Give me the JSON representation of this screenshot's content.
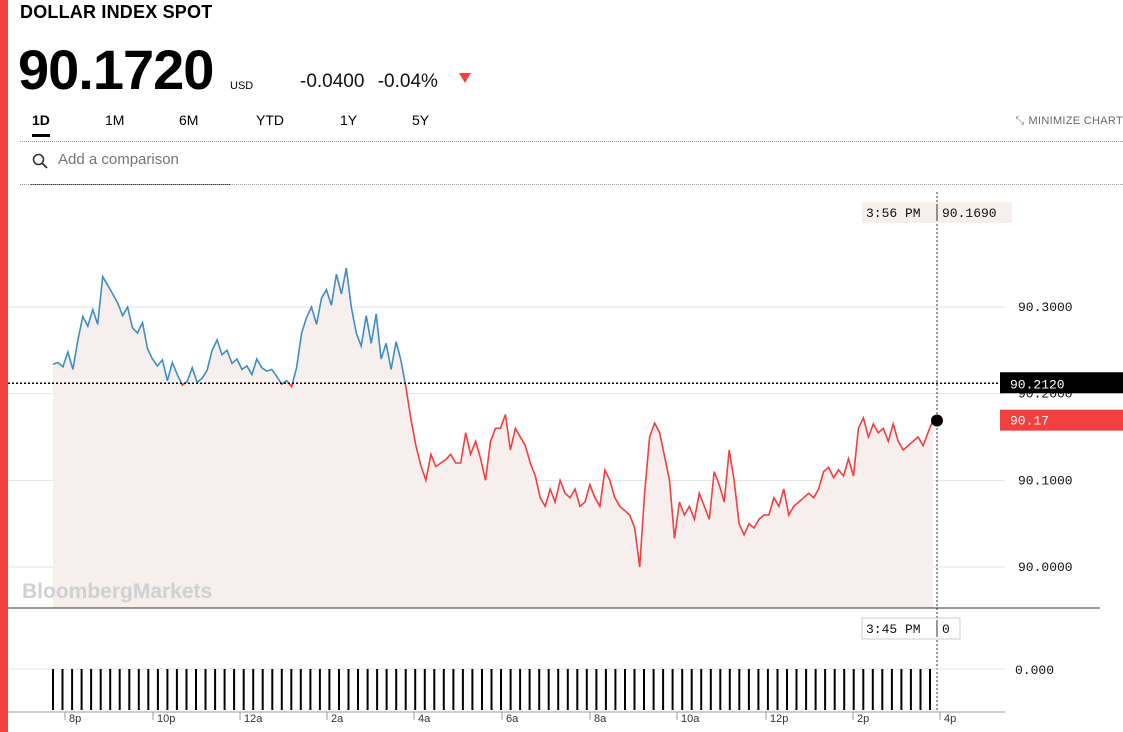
{
  "header": {
    "title": "DOLLAR INDEX SPOT",
    "price": "90.1720",
    "currency": "USD",
    "change_abs": "-0.0400",
    "change_pct": "-0.04%"
  },
  "ranges": [
    "1D",
    "1M",
    "6M",
    "YTD",
    "1Y",
    "5Y"
  ],
  "active_range": "1D",
  "minimize_label": "MINIMIZE CHART",
  "search": {
    "placeholder": "Add a comparison"
  },
  "watermark": "BloombergMarkets",
  "colors": {
    "up": "#3d8fc0",
    "down": "#f23f3f",
    "fill": "#f7eeee",
    "accent": "#f23f3f"
  },
  "chart_data": {
    "type": "line",
    "ylim": [
      89.95,
      90.36
    ],
    "y_ticks": [
      "90.3000",
      "90.2000",
      "90.1000",
      "90.0000"
    ],
    "x_ticks": [
      "8p",
      "10p",
      "12a",
      "2a",
      "4a",
      "6a",
      "8a",
      "10a",
      "12p",
      "2p",
      "4p"
    ],
    "previous_close": "90.2120",
    "last_label": "90.17",
    "crosshair": {
      "time": "3:56 PM",
      "value": "90.1690"
    },
    "volume_crosshair": {
      "time": "3:45 PM",
      "value": "0"
    },
    "volume_tick": "0.000",
    "series": [
      {
        "values": [
          90.234,
          90.236,
          90.231,
          90.248,
          90.228,
          90.262,
          90.289,
          90.278,
          90.297,
          90.28,
          90.335,
          90.325,
          90.315,
          90.305,
          90.29,
          90.3,
          90.276,
          90.27,
          90.282,
          90.252,
          90.24,
          90.232,
          90.239,
          90.215,
          90.236,
          90.222,
          90.21,
          90.214,
          90.23,
          90.213,
          90.218,
          90.227,
          90.25,
          90.262,
          90.245,
          90.25,
          90.235,
          90.24,
          90.228,
          90.232,
          90.222,
          90.24,
          90.23,
          90.226,
          90.228,
          90.22,
          90.211,
          90.215,
          90.208,
          90.23,
          90.27,
          90.288,
          90.3,
          90.28,
          90.31,
          90.32,
          90.302,
          90.338,
          90.315,
          90.345,
          90.3,
          90.27,
          90.255,
          90.29,
          90.258,
          90.292,
          90.24,
          90.258,
          90.228,
          90.26,
          90.238,
          90.207,
          90.17,
          90.14,
          90.117,
          90.1,
          90.13,
          90.116,
          90.12,
          90.124,
          90.13,
          90.12,
          90.12,
          90.155,
          90.13,
          90.145,
          90.125,
          90.1,
          90.145,
          90.16,
          90.16,
          90.176,
          90.135,
          90.16,
          90.15,
          90.14,
          90.12,
          90.105,
          90.08,
          90.07,
          90.09,
          90.075,
          90.1,
          90.085,
          90.08,
          90.09,
          90.07,
          90.075,
          90.095,
          90.08,
          90.07,
          90.112,
          90.1,
          90.08,
          90.07,
          90.065,
          90.06,
          90.045,
          90.0,
          90.085,
          90.15,
          90.166,
          90.155,
          90.128,
          90.1,
          90.033,
          90.075,
          90.06,
          90.07,
          90.055,
          90.085,
          90.07,
          90.055,
          90.11,
          90.095,
          90.075,
          90.135,
          90.1,
          90.05,
          90.037,
          90.05,
          90.045,
          90.055,
          90.06,
          90.06,
          90.08,
          90.07,
          90.09,
          90.06,
          90.07,
          90.075,
          90.08,
          90.085,
          90.08,
          90.09,
          90.11,
          90.115,
          90.103,
          90.112,
          90.105,
          90.125,
          90.105,
          90.16,
          90.172,
          90.15,
          90.165,
          90.155,
          90.16,
          90.145,
          90.165,
          90.145,
          90.135,
          90.14,
          90.145,
          90.15,
          90.14,
          90.155,
          90.169
        ]
      }
    ]
  }
}
